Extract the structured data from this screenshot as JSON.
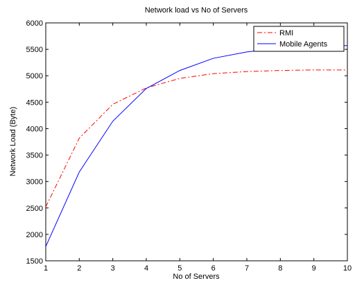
{
  "chart_data": {
    "type": "line",
    "title": "Network load vs No of Servers",
    "xlabel": "No of Servers",
    "ylabel": "Network Load (Byte)",
    "xlim": [
      1,
      10
    ],
    "ylim": [
      1500,
      6000
    ],
    "xticks": [
      1,
      2,
      3,
      4,
      5,
      6,
      7,
      8,
      9,
      10
    ],
    "yticks": [
      1500,
      2000,
      2500,
      3000,
      3500,
      4000,
      4500,
      5000,
      5500,
      6000
    ],
    "grid": false,
    "legend_position": "top-right",
    "x": [
      1,
      2,
      3,
      4,
      5,
      6,
      7,
      8,
      9,
      10
    ],
    "series": [
      {
        "name": "RMI",
        "color": "#ff0000",
        "style": "dash-dot",
        "values": [
          2520,
          3820,
          4460,
          4770,
          4950,
          5040,
          5080,
          5100,
          5110,
          5110
        ]
      },
      {
        "name": "Mobile Agents",
        "color": "#0000ff",
        "style": "solid",
        "values": [
          1770,
          3180,
          4140,
          4760,
          5100,
          5330,
          5450,
          5520,
          5560,
          5570
        ]
      }
    ]
  }
}
